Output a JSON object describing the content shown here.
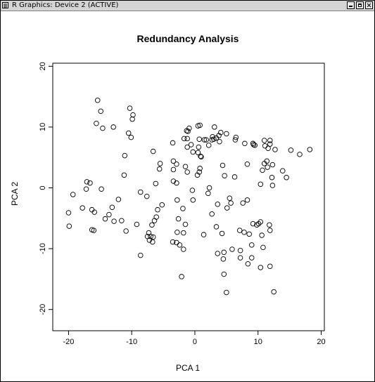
{
  "window": {
    "title": "R Graphics: Device 2 (ACTIVE)"
  },
  "chart_data": {
    "type": "scatter",
    "title": "Redundancy Analysis",
    "xlabel": "PCA 1",
    "ylabel": "PCA 2",
    "xlim": [
      -22.5,
      20.5
    ],
    "ylim": [
      -23.5,
      20.5
    ],
    "xticks": [
      -20,
      -10,
      0,
      10,
      20
    ],
    "yticks": [
      -20,
      -10,
      0,
      10,
      20
    ],
    "grid": false,
    "points": [
      [
        -15.4,
        14.4
      ],
      [
        -10.3,
        13.1
      ],
      [
        -9.8,
        12.0
      ],
      [
        -14.9,
        12.6
      ],
      [
        -9.9,
        11.3
      ],
      [
        -15.6,
        10.6
      ],
      [
        -14.6,
        9.8
      ],
      [
        -12.9,
        10.0
      ],
      [
        -10.5,
        9.0
      ],
      [
        -10.1,
        8.3
      ],
      [
        -11.1,
        5.3
      ],
      [
        -11.2,
        2.1
      ],
      [
        -17.1,
        1.0
      ],
      [
        -16.6,
        0.8
      ],
      [
        -17.2,
        -0.2
      ],
      [
        -14.8,
        -0.2
      ],
      [
        -19.3,
        -1.1
      ],
      [
        -12.1,
        -1.9
      ],
      [
        -13.1,
        -3.2
      ],
      [
        -16.3,
        -3.6
      ],
      [
        -17.8,
        -3.3
      ],
      [
        -15.9,
        -4.0
      ],
      [
        -20.0,
        -4.1
      ],
      [
        -13.6,
        -4.4
      ],
      [
        -14.2,
        -5.1
      ],
      [
        -12.8,
        -5.5
      ],
      [
        -11.6,
        -5.4
      ],
      [
        -19.9,
        -6.3
      ],
      [
        -16.3,
        -6.9
      ],
      [
        -16.0,
        -7.0
      ],
      [
        -10.9,
        -7.1
      ],
      [
        -8.6,
        -0.7
      ],
      [
        -7.6,
        -1.4
      ],
      [
        -6.2,
        0.7
      ],
      [
        -6.1,
        -4.8
      ],
      [
        -6.4,
        -5.4
      ],
      [
        -6.8,
        -6.1
      ],
      [
        -9.2,
        -6.0
      ],
      [
        -7.3,
        -7.4
      ],
      [
        -5.9,
        -3.6
      ],
      [
        -7.5,
        -8.0
      ],
      [
        -7.0,
        -8.0
      ],
      [
        -6.6,
        -8.1
      ],
      [
        -6.7,
        -8.9
      ],
      [
        -7.2,
        -8.6
      ],
      [
        -8.6,
        -11.1
      ],
      [
        -6.6,
        6.0
      ],
      [
        -5.5,
        4.0
      ],
      [
        -5.6,
        3.1
      ],
      [
        -5.2,
        -2.8
      ],
      [
        -3.5,
        7.4
      ],
      [
        -3.4,
        4.4
      ],
      [
        -3.4,
        3.0
      ],
      [
        -3.4,
        1.1
      ],
      [
        -2.9,
        0.8
      ],
      [
        -2.9,
        3.9
      ],
      [
        -2.8,
        -2.0
      ],
      [
        -2.6,
        -5.1
      ],
      [
        -2.8,
        -7.3
      ],
      [
        -3.5,
        -8.9
      ],
      [
        -2.9,
        -9.0
      ],
      [
        -2.4,
        -9.4
      ],
      [
        -1.8,
        -7.4
      ],
      [
        -1.9,
        -3.4
      ],
      [
        -1.5,
        3.5
      ],
      [
        -1.2,
        2.6
      ],
      [
        -1.2,
        8.1
      ],
      [
        -1.7,
        8.1
      ],
      [
        -1.3,
        9.4
      ],
      [
        -0.9,
        9.8
      ],
      [
        -1.1,
        9.3
      ],
      [
        -0.6,
        7.1
      ],
      [
        -1.2,
        6.7
      ],
      [
        -0.3,
        5.9
      ],
      [
        -0.4,
        -0.4
      ],
      [
        -0.3,
        -2.0
      ],
      [
        0.4,
        2.1
      ],
      [
        0.7,
        2.6
      ],
      [
        0.8,
        3.2
      ],
      [
        0.5,
        5.8
      ],
      [
        0.9,
        5.2
      ],
      [
        0.6,
        6.7
      ],
      [
        0.7,
        8.0
      ],
      [
        0.5,
        10.2
      ],
      [
        0.8,
        10.3
      ],
      [
        1.0,
        5.1
      ],
      [
        1.5,
        7.9
      ],
      [
        1.8,
        7.9
      ],
      [
        -1.5,
        -6.0
      ],
      [
        -1.8,
        -10.1
      ],
      [
        -2.1,
        -14.6
      ],
      [
        1.4,
        -7.7
      ],
      [
        2.3,
        0.0
      ],
      [
        2.1,
        -0.9
      ],
      [
        2.2,
        7.0
      ],
      [
        2.7,
        7.9
      ],
      [
        2.8,
        8.4
      ],
      [
        3.1,
        10.0
      ],
      [
        3.0,
        8.0
      ],
      [
        3.4,
        8.2
      ],
      [
        3.8,
        8.6
      ],
      [
        4.1,
        9.1
      ],
      [
        3.9,
        7.6
      ],
      [
        4.4,
        3.7
      ],
      [
        4.7,
        2.0
      ],
      [
        5.0,
        8.9
      ],
      [
        2.7,
        -4.3
      ],
      [
        3.6,
        -2.7
      ],
      [
        3.4,
        -6.4
      ],
      [
        3.6,
        -10.8
      ],
      [
        4.3,
        -7.5
      ],
      [
        4.6,
        -10.6
      ],
      [
        4.5,
        -11.7
      ],
      [
        4.6,
        -14.2
      ],
      [
        5.0,
        -17.2
      ],
      [
        5.1,
        -3.3
      ],
      [
        5.7,
        -2.5
      ],
      [
        5.5,
        -1.7
      ],
      [
        5.9,
        -10.1
      ],
      [
        6.3,
        1.8
      ],
      [
        6.4,
        7.9
      ],
      [
        6.5,
        8.3
      ],
      [
        7.1,
        -7.0
      ],
      [
        7.2,
        -11.5
      ],
      [
        7.2,
        -10.3
      ],
      [
        7.8,
        -7.3
      ],
      [
        7.6,
        -2.5
      ],
      [
        7.9,
        7.3
      ],
      [
        8.3,
        3.9
      ],
      [
        8.3,
        -2.0
      ],
      [
        8.6,
        -7.6
      ],
      [
        8.4,
        -12.5
      ],
      [
        9.0,
        -9.4
      ],
      [
        9.2,
        -5.9
      ],
      [
        9.0,
        -11.5
      ],
      [
        9.2,
        7.3
      ],
      [
        9.3,
        7.1
      ],
      [
        9.5,
        7.0
      ],
      [
        9.8,
        -6.1
      ],
      [
        10.1,
        -5.9
      ],
      [
        10.4,
        -5.6
      ],
      [
        10.6,
        -7.8
      ],
      [
        10.4,
        -13.1
      ],
      [
        10.4,
        0.6
      ],
      [
        10.7,
        2.9
      ],
      [
        10.8,
        -9.8
      ],
      [
        11.0,
        7.8
      ],
      [
        11.1,
        6.9
      ],
      [
        11.0,
        4.0
      ],
      [
        11.4,
        4.4
      ],
      [
        11.5,
        3.4
      ],
      [
        11.6,
        6.5
      ],
      [
        11.9,
        7.2
      ],
      [
        11.9,
        7.8
      ],
      [
        11.8,
        -6.1
      ],
      [
        11.9,
        -7.0
      ],
      [
        11.9,
        -12.9
      ],
      [
        12.2,
        1.7
      ],
      [
        12.3,
        0.4
      ],
      [
        12.3,
        3.8
      ],
      [
        12.7,
        6.3
      ],
      [
        12.5,
        -17.1
      ],
      [
        13.9,
        2.8
      ],
      [
        14.5,
        1.7
      ],
      [
        15.2,
        6.2
      ],
      [
        16.6,
        5.5
      ],
      [
        18.2,
        6.3
      ]
    ]
  }
}
